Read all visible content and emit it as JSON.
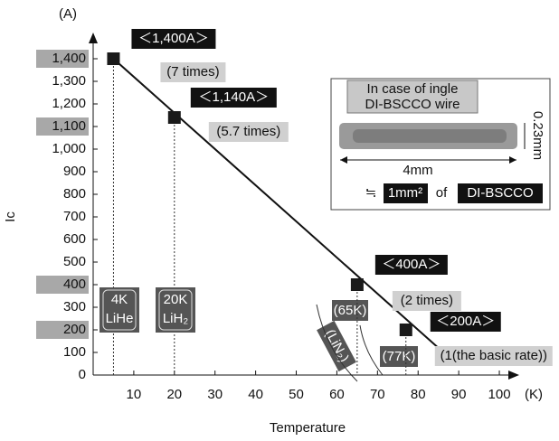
{
  "chart_data": {
    "type": "line",
    "y_unit": "(A)",
    "y_label": "Ic",
    "x_label": "Temperature",
    "x_unit": "(K)",
    "xlim": [
      0,
      104
    ],
    "ylim": [
      0,
      1500
    ],
    "xticks": [
      10,
      20,
      30,
      40,
      50,
      60,
      70,
      80,
      90,
      100
    ],
    "yticks": [
      0,
      100,
      200,
      300,
      400,
      500,
      600,
      700,
      800,
      900,
      {
        "value": 1000,
        "label": "1,000"
      },
      {
        "value": 1100,
        "label": "1,100"
      },
      {
        "value": 1200,
        "label": "1,200"
      },
      {
        "value": 1300,
        "label": "1,300"
      },
      {
        "value": 1400,
        "label": "1,400"
      }
    ],
    "highlighted_yticks": [
      1400,
      1100,
      400,
      200
    ],
    "series": [
      {
        "color": "#1a1a1a",
        "x": [
          5,
          20,
          65,
          77
        ],
        "values": [
          1400,
          1140,
          400,
          200
        ],
        "value_labels": [
          "＜1,400A＞",
          "＜1,140A＞",
          "＜400A＞",
          "＜200A＞"
        ],
        "ratio_labels": [
          "(7 times)",
          "(5.7 times)",
          "(2 times)",
          "(1(the basic rate))"
        ]
      }
    ],
    "trend": {
      "x": [
        5,
        87
      ],
      "values": [
        1400,
        88
      ]
    },
    "coolants": [
      [
        "4K",
        "LiHe"
      ],
      [
        "20K",
        "LiH₂"
      ]
    ],
    "nitrogen": {
      "temp_65": "(65K)",
      "name": "(LiN₂)",
      "temp_77": "(77K)"
    },
    "inset": {
      "title": [
        "In case of ingle",
        "DI-BSCCO wire"
      ],
      "thickness": "0.23mm",
      "width": "4mm",
      "approx": "≒",
      "area": "1mm²",
      "of": "of",
      "material": "DI-BSCCO"
    }
  }
}
